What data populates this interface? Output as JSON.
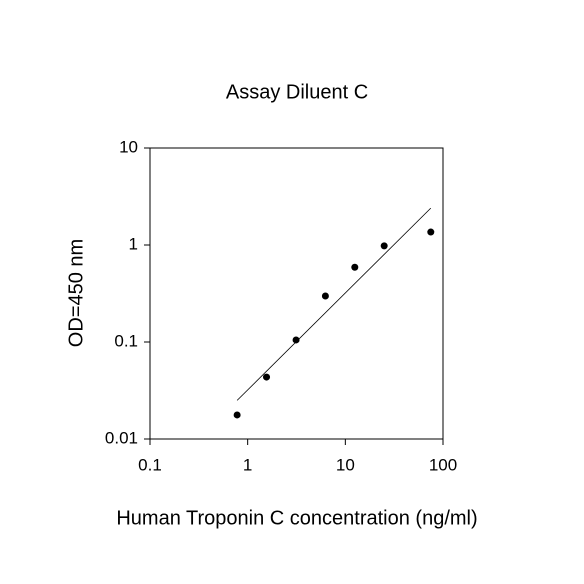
{
  "chart_data": {
    "type": "scatter",
    "title": "Assay Diluent C",
    "xlabel": "Human Troponin C concentration (ng/ml)",
    "ylabel": "OD=450 nm",
    "x": [
      0.78,
      1.56,
      3.13,
      6.25,
      12.5,
      25,
      75
    ],
    "values": [
      0.0177,
      0.0435,
      0.105,
      0.298,
      0.59,
      0.98,
      1.36
    ],
    "color": "#000000",
    "trendline": {
      "x": [
        0.78,
        75
      ],
      "values": [
        0.025,
        2.4
      ]
    },
    "xscale": "log",
    "yscale": "log",
    "xlim": [
      0.1,
      100
    ],
    "ylim": [
      0.01,
      10
    ],
    "xticks": [
      0.1,
      1,
      10,
      100
    ],
    "yticks": [
      0.01,
      0.1,
      1,
      10
    ],
    "grid": false
  }
}
